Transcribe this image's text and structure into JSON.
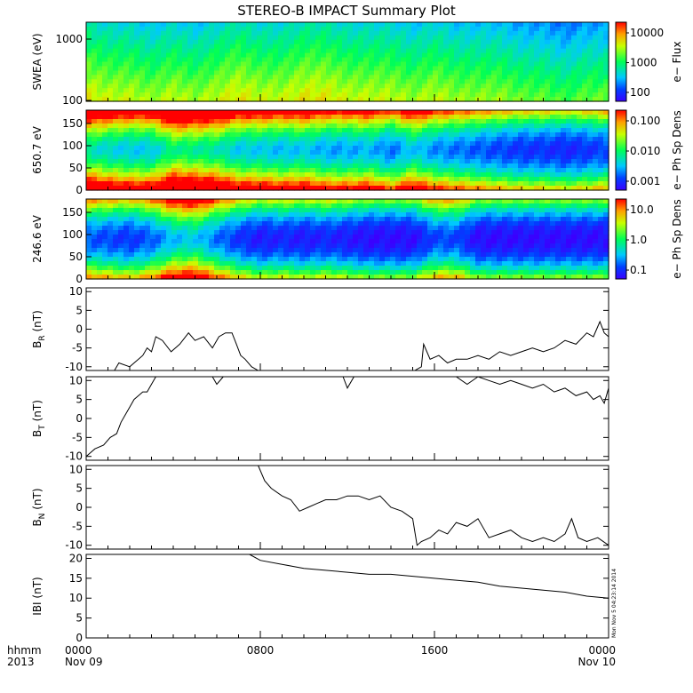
{
  "title": "STEREO-B IMPACT Summary Plot",
  "bottom_labels": {
    "left_line1": "hhmm",
    "left_line2": "2013",
    "x_ticks": [
      "0000",
      "0800",
      "1600",
      "0000"
    ],
    "x_ticks_line2": [
      "Nov 09",
      "",
      "",
      "Nov 10"
    ]
  },
  "timestamp": "Mon Nov 5 04:23:14 2014",
  "colors": {
    "spectral_low": "#3a00ff",
    "spectral_mid": "#00ff55",
    "spectral_high": "#ff0000",
    "line": "#000000"
  },
  "chart_data": [
    {
      "type": "heatmap",
      "ylabel": "SWEA (eV)",
      "yscale": "log",
      "yticks": [
        "1000",
        "100"
      ],
      "colorbar_label": "e− Flux",
      "colorbar_scale": "log",
      "colorbar_ticks": [
        "10000",
        "1000",
        "100"
      ],
      "x_range_hours": [
        0,
        24
      ],
      "level_profile": [
        0.55,
        0.5,
        0.5,
        0.45,
        0.5,
        0.45,
        0.5,
        0.55,
        0.5,
        0.5,
        0.55,
        0.55,
        0.5,
        0.5,
        0.5,
        0.45,
        0.5,
        0.45,
        0.45,
        0.45,
        0.4,
        0.4,
        0.35,
        0.4,
        0.4
      ]
    },
    {
      "type": "heatmap",
      "ylabel": "650.7 eV",
      "ylim": [
        0,
        180
      ],
      "yticks": [
        "0",
        "50",
        "100",
        "150"
      ],
      "colorbar_label": "e− Ph Sp Dens",
      "colorbar_scale": "log",
      "colorbar_ticks": [
        "0.100",
        "0.010",
        "0.001"
      ],
      "x_range_hours": [
        0,
        24
      ],
      "level_profile": [
        0.7,
        0.6,
        0.55,
        0.55,
        0.8,
        0.75,
        0.7,
        0.55,
        0.55,
        0.5,
        0.55,
        0.45,
        0.45,
        0.5,
        0.35,
        0.55,
        0.4,
        0.35,
        0.3,
        0.25,
        0.2,
        0.2,
        0.15,
        0.2,
        0.25
      ]
    },
    {
      "type": "heatmap",
      "ylabel": "246.6 eV",
      "ylim": [
        0,
        180
      ],
      "yticks": [
        "0",
        "50",
        "100",
        "150"
      ],
      "colorbar_label": "e− Ph Sp Dens",
      "colorbar_scale": "log",
      "colorbar_ticks": [
        "10.0",
        "1.0",
        "0.1"
      ],
      "x_range_hours": [
        0,
        24
      ],
      "level_profile": [
        0.3,
        0.25,
        0.2,
        0.3,
        0.5,
        0.55,
        0.35,
        0.2,
        0.1,
        0.15,
        0.1,
        0.15,
        0.1,
        0.05,
        0.05,
        0.05,
        0.25,
        0.25,
        0.05,
        0.05,
        0.05,
        0.05,
        0.05,
        0.05,
        0.05
      ]
    },
    {
      "type": "line",
      "ylabel": "B",
      "ylabel_sub": "R",
      "yunit": "(nT)",
      "ylim": [
        -11,
        11
      ],
      "yticks": [
        "10",
        "5",
        "0",
        "-5",
        "-10"
      ],
      "x": [
        0,
        1.3,
        1.5,
        2.0,
        2.6,
        2.8,
        3.0,
        3.2,
        3.5,
        3.9,
        4.3,
        4.7,
        5.0,
        5.4,
        5.8,
        6.1,
        6.4,
        6.7,
        6.9,
        7.1,
        7.3,
        7.6,
        7.9,
        8.3,
        15.1,
        15.4,
        15.5,
        15.8,
        16.2,
        16.6,
        17.0,
        17.5,
        18.0,
        18.5,
        19.0,
        19.5,
        20.0,
        20.5,
        21.0,
        21.5,
        22.0,
        22.5,
        23.0,
        23.3,
        23.6,
        23.8,
        24.0
      ],
      "y": [
        -11,
        -11,
        -9,
        -10,
        -7,
        -5,
        -6,
        -2,
        -3,
        -6,
        -4,
        -1,
        -3,
        -2,
        -5,
        -2,
        -1,
        -1,
        -4,
        -7,
        -8,
        -10,
        -11,
        -11,
        -11,
        -10,
        -4,
        -8,
        -7,
        -9,
        -8,
        -8,
        -7,
        -8,
        -6,
        -7,
        -6,
        -5,
        -6,
        -5,
        -3,
        -4,
        -1,
        -2,
        2,
        -1,
        -2
      ]
    },
    {
      "type": "line",
      "ylabel": "B",
      "ylabel_sub": "T",
      "yunit": "(nT)",
      "ylim": [
        -11,
        11
      ],
      "yticks": [
        "10",
        "5",
        "0",
        "-5",
        "-10"
      ],
      "x": [
        0,
        0.4,
        0.8,
        1.1,
        1.4,
        1.6,
        1.8,
        2.0,
        2.2,
        2.4,
        2.6,
        2.8,
        3.0,
        3.2,
        5.8,
        6.0,
        6.3,
        11.8,
        12.0,
        12.3,
        17.0,
        17.5,
        18.0,
        18.5,
        19.0,
        19.5,
        20.0,
        20.5,
        21.0,
        21.5,
        22.0,
        22.5,
        23.0,
        23.3,
        23.6,
        23.8,
        24.0
      ],
      "y": [
        -10,
        -8,
        -7,
        -5,
        -4,
        -1,
        1,
        3,
        5,
        6,
        7,
        7,
        9,
        11,
        11,
        9,
        11,
        11,
        8,
        11,
        11,
        9,
        11,
        10,
        9,
        10,
        9,
        8,
        9,
        7,
        8,
        6,
        7,
        5,
        6,
        4,
        8
      ]
    },
    {
      "type": "line",
      "ylabel": "B",
      "ylabel_sub": "N",
      "yunit": "(nT)",
      "ylim": [
        -11,
        11
      ],
      "yticks": [
        "10",
        "5",
        "0",
        "-5",
        "-10"
      ],
      "x": [
        7.9,
        8.2,
        8.5,
        9.0,
        9.4,
        9.8,
        10.2,
        10.6,
        11.0,
        11.5,
        12.0,
        12.5,
        13.0,
        13.5,
        14.0,
        14.5,
        15.0,
        15.2,
        15.4,
        15.8,
        16.2,
        16.6,
        17.0,
        17.5,
        18.0,
        18.5,
        19.0,
        19.5,
        20.0,
        20.5,
        21.0,
        21.5,
        22.0,
        22.3,
        22.6,
        23.0,
        23.5,
        24.0
      ],
      "y": [
        11,
        7,
        5,
        3,
        2,
        -1,
        0,
        1,
        2,
        2,
        3,
        3,
        2,
        3,
        0,
        -1,
        -3,
        -10,
        -9,
        -8,
        -6,
        -7,
        -4,
        -5,
        -3,
        -8,
        -7,
        -6,
        -8,
        -9,
        -8,
        -9,
        -7,
        -3,
        -8,
        -9,
        -8,
        -10
      ]
    },
    {
      "type": "line",
      "ylabel": "IBI",
      "yunit": "(nT)",
      "ylim": [
        0,
        21
      ],
      "yticks": [
        "20",
        "15",
        "10",
        "5",
        "0"
      ],
      "x": [
        7.5,
        8.0,
        9.0,
        10.0,
        11.0,
        12.0,
        13.0,
        14.0,
        15.0,
        16.0,
        17.0,
        18.0,
        19.0,
        20.0,
        21.0,
        22.0,
        23.0,
        24.0
      ],
      "y": [
        21,
        19.5,
        18.5,
        17.5,
        17,
        16.5,
        16,
        16,
        15.5,
        15,
        14.5,
        14,
        13,
        12.5,
        12,
        11.5,
        10.5,
        10
      ]
    }
  ]
}
